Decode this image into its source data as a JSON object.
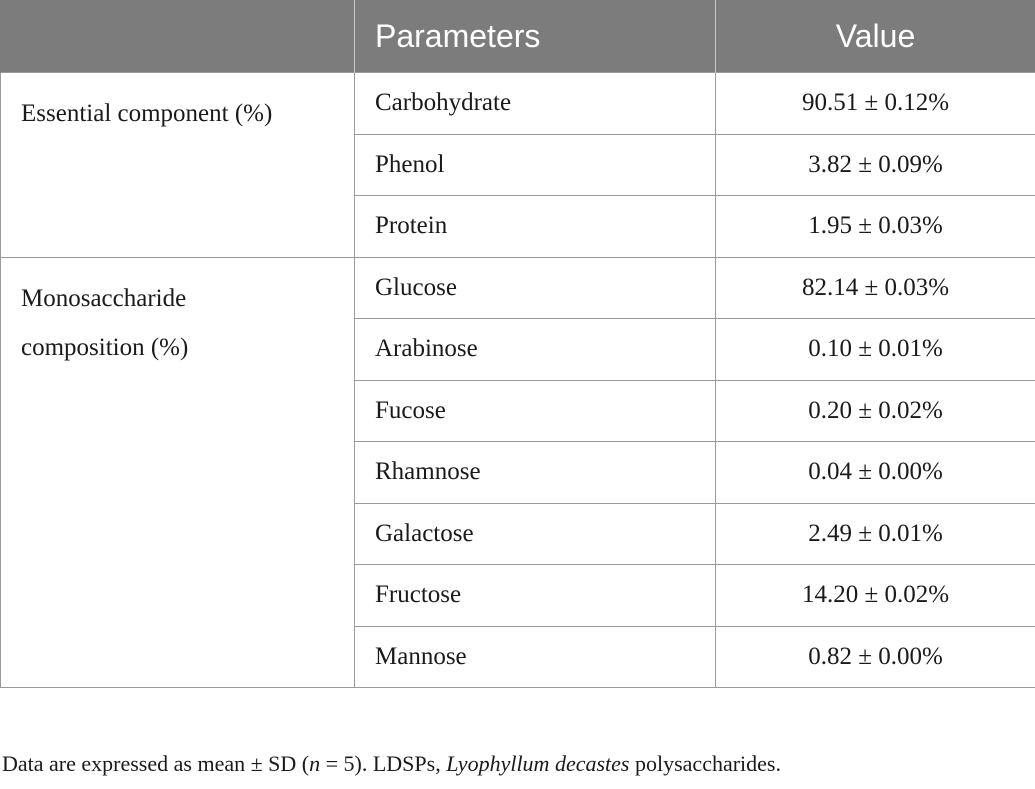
{
  "table": {
    "headers": [
      "",
      "Parameters",
      "Value"
    ],
    "groups": [
      {
        "label": "Essential component (%)",
        "rows": [
          {
            "parameter": "Carbohydrate",
            "value": "90.51 ± 0.12%"
          },
          {
            "parameter": "Phenol",
            "value": "3.82 ± 0.09%"
          },
          {
            "parameter": "Protein",
            "value": "1.95 ± 0.03%"
          }
        ]
      },
      {
        "label": "Monosaccharide composition (%)",
        "rows": [
          {
            "parameter": "Glucose",
            "value": "82.14 ± 0.03%"
          },
          {
            "parameter": "Arabinose",
            "value": "0.10 ± 0.01%"
          },
          {
            "parameter": "Fucose",
            "value": "0.20 ± 0.02%"
          },
          {
            "parameter": "Rhamnose",
            "value": "0.04 ± 0.00%"
          },
          {
            "parameter": "Galactose",
            "value": "2.49 ± 0.01%"
          },
          {
            "parameter": "Fructose",
            "value": "14.20 ± 0.02%"
          },
          {
            "parameter": "Mannose",
            "value": "0.82 ± 0.00%"
          }
        ]
      }
    ]
  },
  "footnote": {
    "text_1": "Data are expressed as mean ± SD (",
    "n_symbol": "n",
    "text_2": " = 5). LDSPs, ",
    "species": "Lyophyllum decastes",
    "text_3": " polysaccharides."
  },
  "colors": {
    "header_background": "#7b7c7b",
    "header_text": "#ffffff",
    "grid_lines": "#9a9a9a",
    "body_text": "#1a1a1a"
  }
}
